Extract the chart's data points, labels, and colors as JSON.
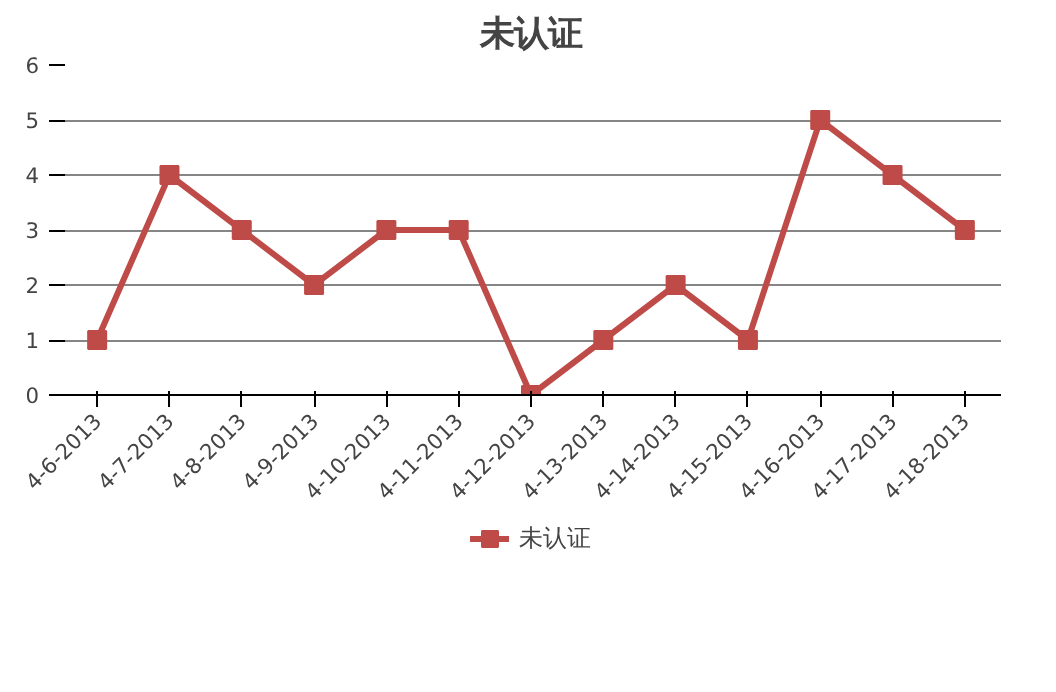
{
  "chart_data": {
    "type": "line",
    "title": "未认证",
    "categories": [
      "4-6-2013",
      "4-7-2013",
      "4-8-2013",
      "4-9-2013",
      "4-10-2013",
      "4-11-2013",
      "4-12-2013",
      "4-13-2013",
      "4-14-2013",
      "4-15-2013",
      "4-16-2013",
      "4-17-2013",
      "4-18-2013"
    ],
    "series": [
      {
        "name": "未认证",
        "color": "#be4b48",
        "values": [
          1,
          4,
          3,
          2,
          3,
          3,
          0,
          1,
          2,
          1,
          5,
          4,
          3
        ]
      }
    ],
    "ylim": [
      0,
      6
    ],
    "yticks": [
      0,
      1,
      2,
      3,
      4,
      5,
      6
    ],
    "grid": "y",
    "legend": "bottom",
    "marker": "square",
    "line_style": "solid"
  }
}
